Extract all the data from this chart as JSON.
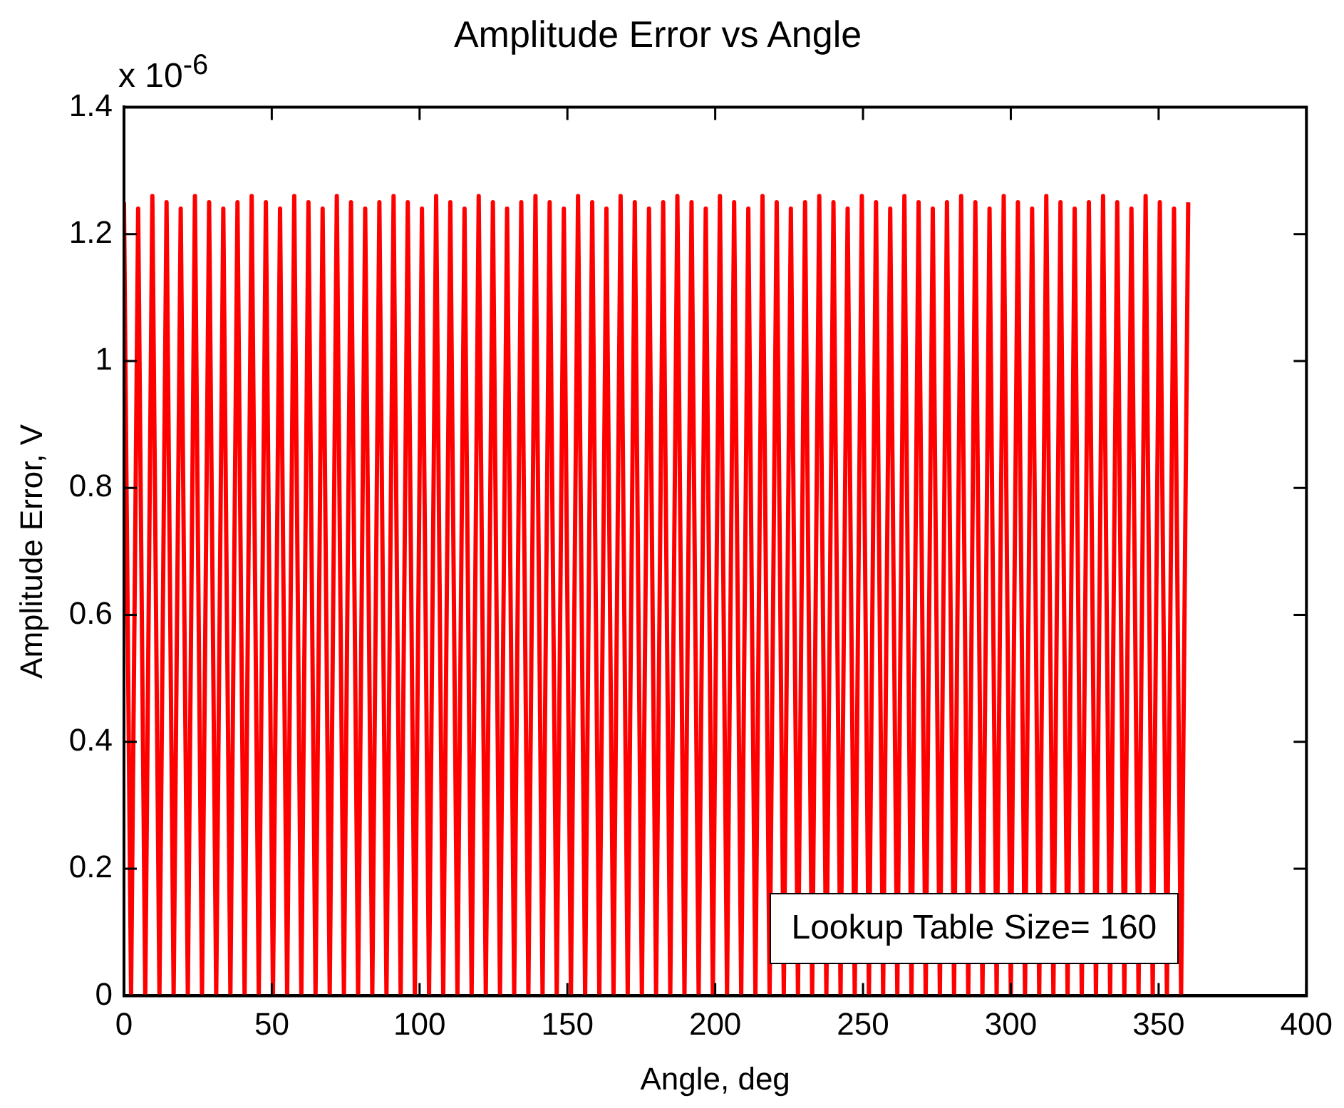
{
  "chart_data": {
    "type": "line",
    "title": "Amplitude Error vs Angle",
    "xlabel": "Angle, deg",
    "ylabel": "Amplitude Error, V",
    "annotations": [
      "x 10$^{-6}$",
      "Lookup Table Size= 160"
    ],
    "xlim": [
      0,
      400
    ],
    "xticks": [
      0,
      50,
      100,
      150,
      200,
      250,
      300,
      350,
      400
    ],
    "ylim": [
      0,
      1.4
    ],
    "yticks": [
      0,
      0.2,
      0.4,
      0.6,
      0.8,
      1,
      1.2,
      1.4
    ],
    "marker": "none",
    "line_style": "solid",
    "x": [
      0,
      2.4,
      4.8,
      7.2,
      9.6,
      12,
      14.4,
      16.8,
      19.2,
      21.6,
      24,
      26.4,
      28.8,
      31.2,
      33.6,
      36,
      38.4,
      40.8,
      43.2,
      45.6,
      48,
      50.4,
      52.8,
      55.2,
      57.6,
      60,
      62.4,
      64.8,
      67.2,
      69.6,
      72,
      74.4,
      76.8,
      79.2,
      81.6,
      84,
      86.4,
      88.8,
      91.2,
      93.6,
      96,
      98.4,
      100.8,
      103.2,
      105.6,
      108,
      110.4,
      112.8,
      115.2,
      117.6,
      120,
      122.4,
      124.8,
      127.2,
      129.6,
      132,
      134.4,
      136.8,
      139.2,
      141.6,
      144,
      146.4,
      148.8,
      151.2,
      153.6,
      156,
      158.4,
      160.8,
      163.2,
      165.6,
      168,
      170.4,
      172.8,
      175.2,
      177.6,
      180,
      182.4,
      184.8,
      187.2,
      189.6,
      192,
      194.4,
      196.8,
      199.2,
      201.6,
      204,
      206.4,
      208.8,
      211.2,
      213.6,
      216,
      218.4,
      220.8,
      223.2,
      225.6,
      228,
      230.4,
      232.8,
      235.2,
      237.6,
      240,
      242.4,
      244.8,
      247.2,
      249.6,
      252,
      254.4,
      256.8,
      259.2,
      261.6,
      264,
      266.4,
      268.8,
      271.2,
      273.6,
      276,
      278.4,
      280.8,
      283.2,
      285.6,
      288,
      290.4,
      292.8,
      295.2,
      297.6,
      300,
      302.4,
      304.8,
      307.2,
      309.6,
      312,
      314.4,
      316.8,
      319.2,
      321.6,
      324,
      326.4,
      328.8,
      331.2,
      333.6,
      336,
      338.4,
      340.8,
      343.2,
      345.6,
      348,
      350.4,
      352.8,
      355.2,
      357.6,
      360
    ],
    "series": [
      {
        "color": "#ff0000",
        "values": [
          1.25,
          0,
          1.24,
          0,
          1.26,
          0,
          1.25,
          0,
          1.24,
          0,
          1.26,
          0,
          1.25,
          0,
          1.24,
          0,
          1.25,
          0,
          1.26,
          0,
          1.25,
          0,
          1.24,
          0,
          1.26,
          0,
          1.25,
          0,
          1.24,
          0,
          1.26,
          0,
          1.25,
          0,
          1.24,
          0,
          1.25,
          0,
          1.26,
          0,
          1.25,
          0,
          1.24,
          0,
          1.26,
          0,
          1.25,
          0,
          1.24,
          0,
          1.26,
          0,
          1.25,
          0,
          1.24,
          0,
          1.25,
          0,
          1.26,
          0,
          1.25,
          0,
          1.24,
          0,
          1.26,
          0,
          1.25,
          0,
          1.24,
          0,
          1.26,
          0,
          1.25,
          0,
          1.24,
          0,
          1.25,
          0,
          1.26,
          0,
          1.25,
          0,
          1.24,
          0,
          1.26,
          0,
          1.25,
          0,
          1.24,
          0,
          1.26,
          0,
          1.25,
          0,
          1.24,
          0,
          1.25,
          0,
          1.26,
          0,
          1.25,
          0,
          1.24,
          0,
          1.26,
          0,
          1.25,
          0,
          1.24,
          0,
          1.26,
          0,
          1.25,
          0,
          1.24,
          0,
          1.25,
          0,
          1.26,
          0,
          1.25,
          0,
          1.24,
          0,
          1.26,
          0,
          1.25,
          0,
          1.24,
          0,
          1.26,
          0,
          1.25,
          0,
          1.24,
          0,
          1.25,
          0,
          1.26,
          0,
          1.25,
          0,
          1.24,
          0,
          1.26,
          0,
          1.25,
          0,
          1.24,
          0,
          1.25
        ]
      }
    ]
  }
}
